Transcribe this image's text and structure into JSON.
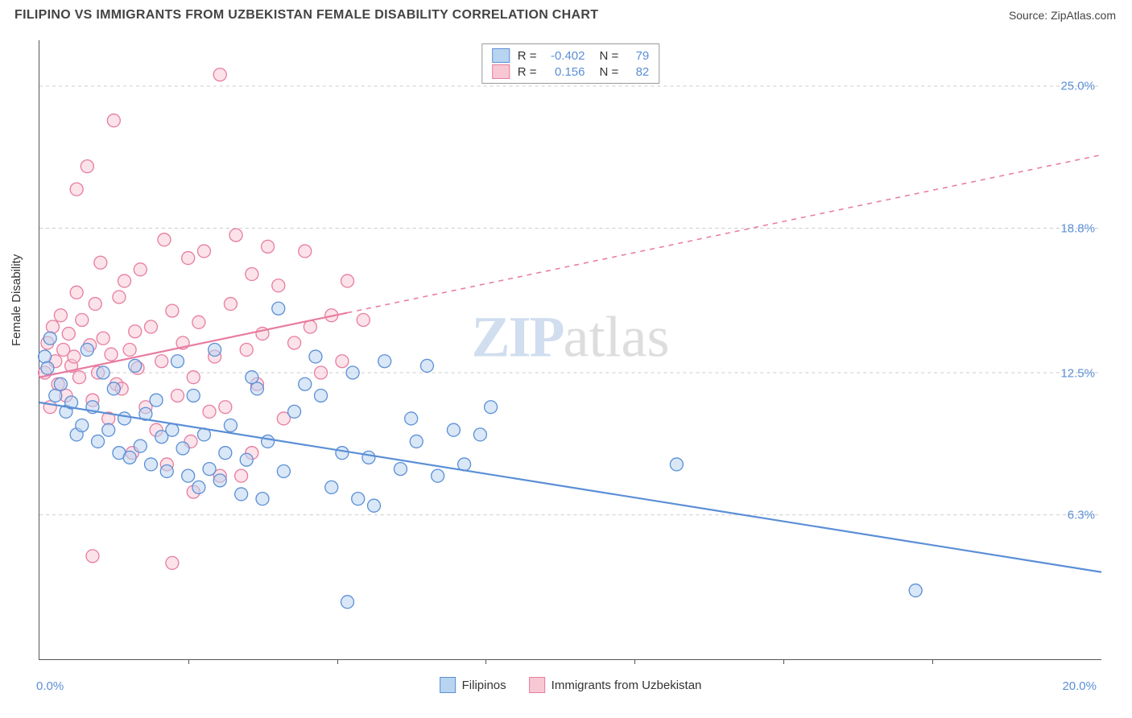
{
  "header": {
    "title": "FILIPINO VS IMMIGRANTS FROM UZBEKISTAN FEMALE DISABILITY CORRELATION CHART",
    "source": "Source: ZipAtlas.com"
  },
  "chart": {
    "type": "scatter",
    "ylabel": "Female Disability",
    "xlim": [
      0,
      20
    ],
    "ylim": [
      0,
      27
    ],
    "ytick_labels": [
      "6.3%",
      "12.5%",
      "18.8%",
      "25.0%"
    ],
    "ytick_values": [
      6.3,
      12.5,
      18.8,
      25.0
    ],
    "xaxis_start_label": "0.0%",
    "xaxis_end_label": "20.0%",
    "xtick_positions": [
      2.8,
      5.6,
      8.4,
      11.2,
      14.0,
      16.8
    ],
    "background_color": "#ffffff",
    "grid_color": "#cccccc",
    "marker_radius": 8,
    "marker_stroke_width": 1.3,
    "line_width": 2.2
  },
  "series": {
    "blue": {
      "label": "Filipinos",
      "fill": "#b9d4f0",
      "stroke": "#5b8fd6",
      "fill_opacity": 0.55,
      "R_label": "R =",
      "R_value": "-0.402",
      "N_label": "N =",
      "N_value": "79",
      "trend": {
        "x1": 0,
        "y1": 11.2,
        "x2": 20,
        "y2": 3.8,
        "solid_until_x": 20
      },
      "points": [
        [
          0.1,
          13.2
        ],
        [
          0.2,
          14.0
        ],
        [
          0.15,
          12.7
        ],
        [
          0.3,
          11.5
        ],
        [
          0.4,
          12.0
        ],
        [
          0.5,
          10.8
        ],
        [
          0.6,
          11.2
        ],
        [
          0.7,
          9.8
        ],
        [
          0.8,
          10.2
        ],
        [
          0.9,
          13.5
        ],
        [
          1.0,
          11.0
        ],
        [
          1.1,
          9.5
        ],
        [
          1.2,
          12.5
        ],
        [
          1.3,
          10.0
        ],
        [
          1.4,
          11.8
        ],
        [
          1.5,
          9.0
        ],
        [
          1.6,
          10.5
        ],
        [
          1.7,
          8.8
        ],
        [
          1.8,
          12.8
        ],
        [
          1.9,
          9.3
        ],
        [
          2.0,
          10.7
        ],
        [
          2.1,
          8.5
        ],
        [
          2.2,
          11.3
        ],
        [
          2.3,
          9.7
        ],
        [
          2.4,
          8.2
        ],
        [
          2.5,
          10.0
        ],
        [
          2.6,
          13.0
        ],
        [
          2.7,
          9.2
        ],
        [
          2.8,
          8.0
        ],
        [
          2.9,
          11.5
        ],
        [
          3.0,
          7.5
        ],
        [
          3.1,
          9.8
        ],
        [
          3.2,
          8.3
        ],
        [
          3.3,
          13.5
        ],
        [
          3.4,
          7.8
        ],
        [
          3.5,
          9.0
        ],
        [
          3.6,
          10.2
        ],
        [
          3.8,
          7.2
        ],
        [
          3.9,
          8.7
        ],
        [
          4.0,
          12.3
        ],
        [
          4.1,
          11.8
        ],
        [
          4.2,
          7.0
        ],
        [
          4.3,
          9.5
        ],
        [
          4.5,
          15.3
        ],
        [
          4.6,
          8.2
        ],
        [
          4.8,
          10.8
        ],
        [
          5.0,
          12.0
        ],
        [
          5.2,
          13.2
        ],
        [
          5.3,
          11.5
        ],
        [
          5.5,
          7.5
        ],
        [
          5.7,
          9.0
        ],
        [
          5.8,
          2.5
        ],
        [
          5.9,
          12.5
        ],
        [
          6.0,
          7.0
        ],
        [
          6.2,
          8.8
        ],
        [
          6.3,
          6.7
        ],
        [
          6.5,
          13.0
        ],
        [
          6.8,
          8.3
        ],
        [
          7.0,
          10.5
        ],
        [
          7.1,
          9.5
        ],
        [
          7.3,
          12.8
        ],
        [
          7.5,
          8.0
        ],
        [
          7.8,
          10.0
        ],
        [
          8.0,
          8.5
        ],
        [
          8.3,
          9.8
        ],
        [
          8.5,
          11.0
        ],
        [
          12.0,
          8.5
        ],
        [
          16.5,
          3.0
        ]
      ]
    },
    "pink": {
      "label": "Immigrants from Uzbekistan",
      "fill": "#f7c8d4",
      "stroke": "#e87ca0",
      "fill_opacity": 0.5,
      "R_label": "R =",
      "R_value": "0.156",
      "N_label": "N =",
      "N_value": "82",
      "trend": {
        "x1": 0,
        "y1": 12.3,
        "x2": 20,
        "y2": 22.0,
        "solid_until_x": 5.8
      },
      "points": [
        [
          0.1,
          12.5
        ],
        [
          0.15,
          13.8
        ],
        [
          0.2,
          11.0
        ],
        [
          0.25,
          14.5
        ],
        [
          0.3,
          13.0
        ],
        [
          0.35,
          12.0
        ],
        [
          0.4,
          15.0
        ],
        [
          0.45,
          13.5
        ],
        [
          0.5,
          11.5
        ],
        [
          0.55,
          14.2
        ],
        [
          0.6,
          12.8
        ],
        [
          0.65,
          13.2
        ],
        [
          0.7,
          16.0
        ],
        [
          0.75,
          12.3
        ],
        [
          0.8,
          14.8
        ],
        [
          0.9,
          21.5
        ],
        [
          0.95,
          13.7
        ],
        [
          1.0,
          11.3
        ],
        [
          1.05,
          15.5
        ],
        [
          1.1,
          12.5
        ],
        [
          1.15,
          17.3
        ],
        [
          1.2,
          14.0
        ],
        [
          1.3,
          10.5
        ],
        [
          1.35,
          13.3
        ],
        [
          1.4,
          23.5
        ],
        [
          1.45,
          12.0
        ],
        [
          1.5,
          15.8
        ],
        [
          1.55,
          11.8
        ],
        [
          1.6,
          16.5
        ],
        [
          1.7,
          13.5
        ],
        [
          1.75,
          9.0
        ],
        [
          1.8,
          14.3
        ],
        [
          1.85,
          12.7
        ],
        [
          1.9,
          17.0
        ],
        [
          2.0,
          11.0
        ],
        [
          2.1,
          14.5
        ],
        [
          2.2,
          10.0
        ],
        [
          2.3,
          13.0
        ],
        [
          2.35,
          18.3
        ],
        [
          2.4,
          8.5
        ],
        [
          2.5,
          15.2
        ],
        [
          2.6,
          11.5
        ],
        [
          2.7,
          13.8
        ],
        [
          2.8,
          17.5
        ],
        [
          2.85,
          9.5
        ],
        [
          2.9,
          12.3
        ],
        [
          3.0,
          14.7
        ],
        [
          3.1,
          17.8
        ],
        [
          3.2,
          10.8
        ],
        [
          3.3,
          13.2
        ],
        [
          3.4,
          25.5
        ],
        [
          3.5,
          11.0
        ],
        [
          3.6,
          15.5
        ],
        [
          3.7,
          18.5
        ],
        [
          3.8,
          8.0
        ],
        [
          3.9,
          13.5
        ],
        [
          4.0,
          16.8
        ],
        [
          4.1,
          12.0
        ],
        [
          4.2,
          14.2
        ],
        [
          4.3,
          18.0
        ],
        [
          4.5,
          16.3
        ],
        [
          4.6,
          10.5
        ],
        [
          4.8,
          13.8
        ],
        [
          5.0,
          17.8
        ],
        [
          5.1,
          14.5
        ],
        [
          5.3,
          12.5
        ],
        [
          5.5,
          15.0
        ],
        [
          5.7,
          13.0
        ],
        [
          5.8,
          16.5
        ],
        [
          6.1,
          14.8
        ],
        [
          0.7,
          20.5
        ],
        [
          1.0,
          4.5
        ],
        [
          2.5,
          4.2
        ],
        [
          2.9,
          7.3
        ],
        [
          3.4,
          8.0
        ],
        [
          4.0,
          9.0
        ]
      ]
    }
  },
  "watermark": {
    "part1": "ZIP",
    "part2": "atlas"
  }
}
